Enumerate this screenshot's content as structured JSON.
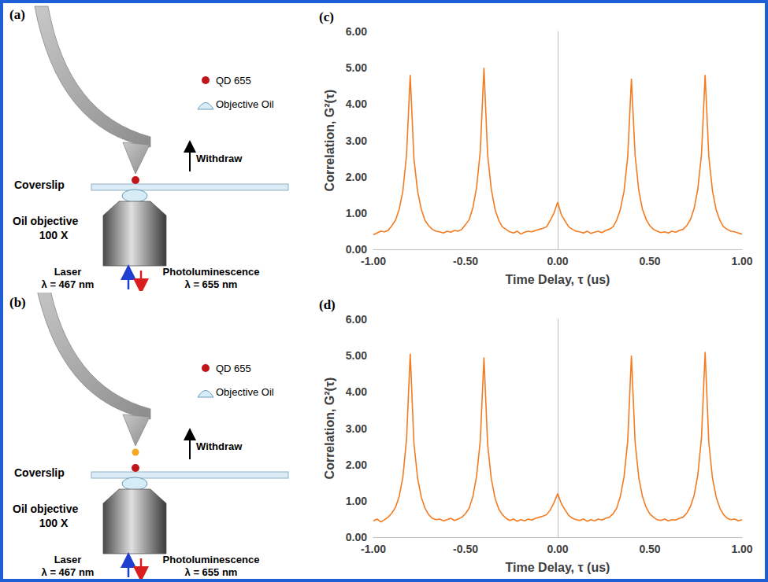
{
  "diagrams": [
    {
      "letter": "(a)",
      "qd_label": "QD 655",
      "oil_label": "Objective Oil",
      "withdraw": "Withdraw",
      "coverslip": "Coverslip",
      "objective": [
        "Oil objective",
        "100 X"
      ],
      "laser": [
        "Laser",
        "λ = 467 nm"
      ],
      "pl": [
        "Photoluminescence",
        "λ = 655 nm"
      ]
    },
    {
      "letter": "(b)",
      "qd_label": "QD 655",
      "oil_label": "Objective Oil",
      "withdraw": "Withdraw",
      "coverslip": "Coverslip",
      "objective": [
        "Oil objective",
        "100 X"
      ],
      "laser": [
        "Laser",
        "λ = 467 nm"
      ],
      "pl": [
        "Photoluminescence",
        "λ = 655 nm"
      ]
    }
  ],
  "chart_data": [
    {
      "type": "line",
      "title": "(c)",
      "x_label": "Time Delay, τ (us)",
      "y_label": "Correlation, G²(τ)",
      "color": "#f47b20",
      "grid": false,
      "xlim": [
        -1,
        1
      ],
      "ylim": [
        0,
        6
      ],
      "xticks": [
        {
          "value": -1,
          "label": "-1.00"
        },
        {
          "value": -0.5,
          "label": "-0.50"
        },
        {
          "value": 0,
          "label": "0.00"
        },
        {
          "value": 0.5,
          "label": "0.50"
        },
        {
          "value": 1,
          "label": "1.00"
        }
      ],
      "yticks": [
        {
          "value": 0,
          "label": "0.00"
        },
        {
          "value": 1,
          "label": "1.00"
        },
        {
          "value": 2,
          "label": "2.00"
        },
        {
          "value": 3,
          "label": "3.00"
        },
        {
          "value": 4,
          "label": "4.00"
        },
        {
          "value": 5,
          "label": "5.00"
        },
        {
          "value": 6,
          "label": "6.00"
        }
      ],
      "x": [
        -1,
        -0.98,
        -0.96,
        -0.94,
        -0.92,
        -0.9,
        -0.88,
        -0.86,
        -0.84,
        -0.82,
        -0.8,
        -0.78,
        -0.76,
        -0.74,
        -0.72,
        -0.7,
        -0.68,
        -0.66,
        -0.64,
        -0.62,
        -0.6,
        -0.58,
        -0.56,
        -0.54,
        -0.52,
        -0.5,
        -0.48,
        -0.46,
        -0.44,
        -0.42,
        -0.4,
        -0.38,
        -0.36,
        -0.34,
        -0.32,
        -0.3,
        -0.28,
        -0.26,
        -0.24,
        -0.22,
        -0.2,
        -0.18,
        -0.16,
        -0.14,
        -0.12,
        -0.1,
        -0.08,
        -0.06,
        -0.04,
        -0.02,
        0,
        0.02,
        0.04,
        0.06,
        0.08,
        0.1,
        0.12,
        0.14,
        0.16,
        0.18,
        0.2,
        0.22,
        0.24,
        0.26,
        0.28,
        0.3,
        0.32,
        0.34,
        0.36,
        0.38,
        0.4,
        0.42,
        0.44,
        0.46,
        0.48,
        0.5,
        0.52,
        0.54,
        0.56,
        0.58,
        0.6,
        0.62,
        0.64,
        0.66,
        0.68,
        0.7,
        0.72,
        0.74,
        0.76,
        0.78,
        0.8,
        0.82,
        0.84,
        0.86,
        0.88,
        0.9,
        0.92,
        0.94,
        0.96,
        0.98,
        1
      ],
      "values": [
        0.4,
        0.45,
        0.5,
        0.48,
        0.52,
        0.65,
        0.8,
        1.1,
        1.6,
        2.6,
        4.8,
        2.5,
        1.6,
        1.1,
        0.8,
        0.65,
        0.55,
        0.5,
        0.48,
        0.45,
        0.5,
        0.47,
        0.52,
        0.5,
        0.55,
        0.68,
        0.82,
        1.15,
        1.7,
        2.7,
        5.0,
        2.6,
        1.65,
        1.1,
        0.8,
        0.62,
        0.55,
        0.48,
        0.45,
        0.5,
        0.42,
        0.47,
        0.5,
        0.48,
        0.52,
        0.55,
        0.58,
        0.62,
        0.8,
        1.0,
        1.3,
        0.95,
        0.78,
        0.62,
        0.55,
        0.5,
        0.48,
        0.45,
        0.5,
        0.44,
        0.47,
        0.5,
        0.46,
        0.52,
        0.55,
        0.62,
        0.8,
        1.1,
        1.6,
        2.55,
        4.7,
        2.6,
        1.62,
        1.1,
        0.82,
        0.65,
        0.55,
        0.5,
        0.46,
        0.48,
        0.45,
        0.5,
        0.47,
        0.52,
        0.55,
        0.65,
        0.82,
        1.12,
        1.65,
        2.6,
        4.8,
        2.55,
        1.6,
        1.08,
        0.8,
        0.62,
        0.55,
        0.5,
        0.48,
        0.45,
        0.42
      ]
    },
    {
      "type": "line",
      "title": "(d)",
      "x_label": "Time Delay, τ (us)",
      "y_label": "Correlation, G²(τ)",
      "color": "#f47b20",
      "grid": false,
      "xlim": [
        -1,
        1
      ],
      "ylim": [
        0,
        6
      ],
      "xticks": [
        {
          "value": -1,
          "label": "-1.00"
        },
        {
          "value": -0.5,
          "label": "-0.50"
        },
        {
          "value": 0,
          "label": "0.00"
        },
        {
          "value": 0.5,
          "label": "0.50"
        },
        {
          "value": 1,
          "label": "1.00"
        }
      ],
      "yticks": [
        {
          "value": 0,
          "label": "0.00"
        },
        {
          "value": 1,
          "label": "1.00"
        },
        {
          "value": 2,
          "label": "2.00"
        },
        {
          "value": 3,
          "label": "3.00"
        },
        {
          "value": 4,
          "label": "4.00"
        },
        {
          "value": 5,
          "label": "5.00"
        },
        {
          "value": 6,
          "label": "6.00"
        }
      ],
      "x": [
        -1,
        -0.98,
        -0.96,
        -0.94,
        -0.92,
        -0.9,
        -0.88,
        -0.86,
        -0.84,
        -0.82,
        -0.8,
        -0.78,
        -0.76,
        -0.74,
        -0.72,
        -0.7,
        -0.68,
        -0.66,
        -0.64,
        -0.62,
        -0.6,
        -0.58,
        -0.56,
        -0.54,
        -0.52,
        -0.5,
        -0.48,
        -0.46,
        -0.44,
        -0.42,
        -0.4,
        -0.38,
        -0.36,
        -0.34,
        -0.32,
        -0.3,
        -0.28,
        -0.26,
        -0.24,
        -0.22,
        -0.2,
        -0.18,
        -0.16,
        -0.14,
        -0.12,
        -0.1,
        -0.08,
        -0.06,
        -0.04,
        -0.02,
        0,
        0.02,
        0.04,
        0.06,
        0.08,
        0.1,
        0.12,
        0.14,
        0.16,
        0.18,
        0.2,
        0.22,
        0.24,
        0.26,
        0.28,
        0.3,
        0.32,
        0.34,
        0.36,
        0.38,
        0.4,
        0.42,
        0.44,
        0.46,
        0.48,
        0.5,
        0.52,
        0.54,
        0.56,
        0.58,
        0.6,
        0.62,
        0.64,
        0.66,
        0.68,
        0.7,
        0.72,
        0.74,
        0.76,
        0.78,
        0.8,
        0.82,
        0.84,
        0.86,
        0.88,
        0.9,
        0.92,
        0.94,
        0.96,
        0.98,
        1
      ],
      "values": [
        0.45,
        0.5,
        0.42,
        0.48,
        0.55,
        0.66,
        0.82,
        1.12,
        1.65,
        2.7,
        5.05,
        2.6,
        1.62,
        1.1,
        0.8,
        0.62,
        0.52,
        0.48,
        0.5,
        0.45,
        0.48,
        0.52,
        0.46,
        0.5,
        0.55,
        0.65,
        0.8,
        1.12,
        1.68,
        2.65,
        4.95,
        2.55,
        1.6,
        1.08,
        0.78,
        0.62,
        0.52,
        0.46,
        0.5,
        0.44,
        0.48,
        0.45,
        0.5,
        0.47,
        0.52,
        0.55,
        0.58,
        0.62,
        0.75,
        0.95,
        1.2,
        0.92,
        0.75,
        0.6,
        0.52,
        0.48,
        0.46,
        0.5,
        0.44,
        0.48,
        0.45,
        0.5,
        0.47,
        0.52,
        0.55,
        0.64,
        0.8,
        1.12,
        1.66,
        2.65,
        5.0,
        2.62,
        1.64,
        1.12,
        0.82,
        0.64,
        0.55,
        0.48,
        0.46,
        0.5,
        0.45,
        0.48,
        0.47,
        0.52,
        0.55,
        0.66,
        0.84,
        1.15,
        1.7,
        2.72,
        5.1,
        2.6,
        1.62,
        1.1,
        0.8,
        0.62,
        0.52,
        0.48,
        0.5,
        0.45,
        0.48
      ]
    }
  ]
}
